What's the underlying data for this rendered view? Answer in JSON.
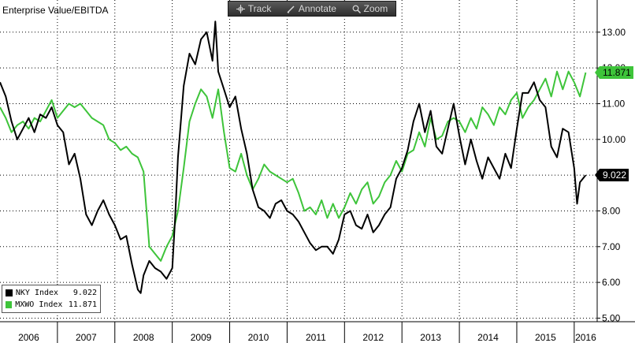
{
  "toolbar": {
    "track_label": "Track",
    "annotate_label": "Annotate",
    "zoom_label": "Zoom"
  },
  "legend": {
    "items": [
      {
        "name": "NKY Index",
        "value": "9.022",
        "color": "#000000"
      },
      {
        "name": "MXWO Index",
        "value": "11.871",
        "color": "#3ec43a"
      }
    ]
  },
  "badges": {
    "nky": "9.022",
    "mxwo": "11.871"
  },
  "chart_data": {
    "type": "line",
    "title": "Enterprise Value/EBITDA",
    "xlabel": "",
    "ylabel": "",
    "ylim": [
      4.9,
      13.9
    ],
    "xlim": [
      2006.0,
      2016.4
    ],
    "yticks": [
      "5.00",
      "6.00",
      "7.00",
      "8.00",
      "9.00",
      "10.00",
      "11.00",
      "12.00",
      "13.00"
    ],
    "xticks": [
      "2006",
      "2007",
      "2008",
      "2009",
      "2010",
      "2011",
      "2012",
      "2013",
      "2014",
      "2015",
      "2016"
    ],
    "grid": true,
    "legend_position": "bottom-left",
    "series": [
      {
        "name": "NKY Index",
        "color": "#000000",
        "x": [
          2006.0,
          2006.1,
          2006.2,
          2006.3,
          2006.4,
          2006.5,
          2006.6,
          2006.7,
          2006.8,
          2006.9,
          2007.0,
          2007.1,
          2007.2,
          2007.3,
          2007.4,
          2007.5,
          2007.6,
          2007.7,
          2007.8,
          2007.9,
          2008.0,
          2008.1,
          2008.2,
          2008.3,
          2008.4,
          2008.45,
          2008.5,
          2008.6,
          2008.7,
          2008.8,
          2008.9,
          2009.0,
          2009.05,
          2009.1,
          2009.2,
          2009.3,
          2009.4,
          2009.5,
          2009.6,
          2009.7,
          2009.75,
          2009.8,
          2009.9,
          2010.0,
          2010.1,
          2010.2,
          2010.3,
          2010.4,
          2010.5,
          2010.6,
          2010.7,
          2010.8,
          2010.9,
          2011.0,
          2011.1,
          2011.2,
          2011.3,
          2011.4,
          2011.5,
          2011.6,
          2011.7,
          2011.8,
          2011.9,
          2012.0,
          2012.1,
          2012.2,
          2012.3,
          2012.4,
          2012.5,
          2012.6,
          2012.7,
          2012.8,
          2012.9,
          2013.0,
          2013.1,
          2013.2,
          2013.3,
          2013.4,
          2013.5,
          2013.6,
          2013.7,
          2013.8,
          2013.9,
          2014.0,
          2014.1,
          2014.2,
          2014.3,
          2014.4,
          2014.5,
          2014.6,
          2014.7,
          2014.8,
          2014.9,
          2015.0,
          2015.1,
          2015.2,
          2015.3,
          2015.4,
          2015.5,
          2015.6,
          2015.7,
          2015.8,
          2015.9,
          2016.0,
          2016.05,
          2016.1,
          2016.2
        ],
        "values": [
          11.6,
          11.2,
          10.5,
          10.0,
          10.3,
          10.6,
          10.2,
          10.7,
          10.6,
          10.9,
          10.4,
          10.2,
          9.3,
          9.6,
          8.9,
          7.9,
          7.6,
          8.0,
          8.3,
          7.9,
          7.6,
          7.2,
          7.3,
          6.5,
          5.8,
          5.7,
          6.2,
          6.6,
          6.4,
          6.3,
          6.1,
          6.4,
          7.8,
          9.5,
          11.5,
          12.4,
          12.1,
          12.8,
          13.0,
          12.2,
          13.3,
          11.9,
          11.4,
          10.9,
          11.2,
          10.3,
          9.6,
          8.6,
          8.1,
          8.0,
          7.8,
          8.2,
          8.3,
          8.0,
          7.9,
          7.7,
          7.4,
          7.1,
          6.9,
          7.0,
          7.0,
          6.8,
          7.2,
          7.9,
          8.0,
          7.6,
          7.5,
          7.9,
          7.4,
          7.6,
          7.9,
          8.1,
          8.9,
          9.2,
          9.7,
          10.5,
          11.0,
          10.2,
          10.8,
          9.8,
          9.6,
          10.3,
          11.0,
          10.1,
          9.3,
          10.0,
          9.4,
          8.9,
          9.5,
          9.2,
          8.9,
          9.6,
          9.2,
          10.3,
          11.3,
          11.3,
          11.6,
          11.1,
          10.9,
          9.8,
          9.5,
          10.3,
          10.2,
          9.2,
          8.2,
          8.8,
          9.0
        ]
      },
      {
        "name": "MXWO Index",
        "color": "#3ec43a",
        "x": [
          2006.0,
          2006.1,
          2006.2,
          2006.3,
          2006.4,
          2006.5,
          2006.6,
          2006.7,
          2006.8,
          2006.9,
          2007.0,
          2007.1,
          2007.2,
          2007.3,
          2007.4,
          2007.5,
          2007.6,
          2007.7,
          2007.8,
          2007.9,
          2008.0,
          2008.1,
          2008.2,
          2008.3,
          2008.4,
          2008.5,
          2008.6,
          2008.7,
          2008.8,
          2008.9,
          2009.0,
          2009.1,
          2009.2,
          2009.3,
          2009.4,
          2009.5,
          2009.6,
          2009.7,
          2009.8,
          2009.9,
          2010.0,
          2010.1,
          2010.2,
          2010.3,
          2010.4,
          2010.5,
          2010.6,
          2010.7,
          2010.8,
          2010.9,
          2011.0,
          2011.1,
          2011.2,
          2011.3,
          2011.4,
          2011.5,
          2011.6,
          2011.7,
          2011.8,
          2011.9,
          2012.0,
          2012.1,
          2012.2,
          2012.3,
          2012.4,
          2012.5,
          2012.6,
          2012.7,
          2012.8,
          2012.9,
          2013.0,
          2013.1,
          2013.2,
          2013.3,
          2013.4,
          2013.5,
          2013.6,
          2013.7,
          2013.8,
          2013.9,
          2014.0,
          2014.1,
          2014.2,
          2014.3,
          2014.4,
          2014.5,
          2014.6,
          2014.7,
          2014.8,
          2014.9,
          2015.0,
          2015.1,
          2015.2,
          2015.3,
          2015.4,
          2015.5,
          2015.6,
          2015.7,
          2015.8,
          2015.9,
          2016.0,
          2016.1,
          2016.2
        ],
        "values": [
          10.9,
          10.6,
          10.2,
          10.4,
          10.5,
          10.3,
          10.6,
          10.5,
          10.8,
          11.1,
          10.6,
          10.8,
          11.0,
          10.9,
          11.0,
          10.8,
          10.6,
          10.5,
          10.4,
          10.0,
          9.9,
          9.7,
          9.8,
          9.6,
          9.5,
          9.1,
          7.0,
          6.8,
          6.6,
          7.0,
          7.3,
          8.0,
          9.2,
          10.5,
          11.0,
          11.4,
          11.2,
          10.6,
          11.4,
          10.2,
          9.2,
          9.1,
          9.6,
          9.0,
          8.6,
          8.9,
          9.3,
          9.1,
          9.0,
          8.9,
          8.8,
          8.9,
          8.5,
          8.0,
          8.1,
          7.9,
          8.3,
          7.8,
          8.2,
          7.8,
          8.1,
          8.5,
          8.2,
          8.6,
          8.8,
          8.2,
          8.4,
          8.8,
          9.0,
          9.4,
          9.1,
          9.6,
          9.7,
          10.2,
          9.8,
          10.6,
          10.0,
          10.1,
          10.5,
          10.6,
          10.5,
          10.2,
          10.6,
          10.3,
          10.9,
          10.7,
          10.4,
          10.9,
          10.7,
          11.1,
          11.3,
          10.6,
          10.9,
          11.1,
          11.4,
          11.7,
          11.2,
          11.9,
          11.4,
          11.9,
          11.6,
          11.2,
          11.871
        ]
      }
    ]
  }
}
